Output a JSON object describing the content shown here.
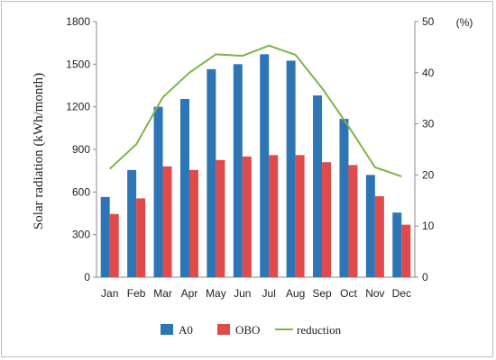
{
  "chart_data": {
    "type": "bar",
    "categories": [
      "Jan",
      "Feb",
      "Mar",
      "Apr",
      "May",
      "Jun",
      "Jul",
      "Aug",
      "Sep",
      "Oct",
      "Nov",
      "Dec"
    ],
    "series": [
      {
        "name": "A0",
        "type": "bar",
        "axis": "left",
        "color": "#2e75b6",
        "values": [
          565,
          755,
          1200,
          1255,
          1465,
          1500,
          1570,
          1525,
          1280,
          1115,
          720,
          455
        ]
      },
      {
        "name": "OBO",
        "type": "bar",
        "axis": "left",
        "color": "#e04a4a",
        "values": [
          445,
          555,
          780,
          755,
          825,
          850,
          860,
          860,
          810,
          790,
          570,
          370
        ]
      },
      {
        "name": "reduction",
        "type": "line",
        "axis": "right",
        "color": "#7bb543",
        "values": [
          21.2,
          26.0,
          35.2,
          40.0,
          43.6,
          43.3,
          45.3,
          43.5,
          37.0,
          29.5,
          21.5,
          19.7
        ]
      }
    ],
    "ylabel": "Solar radiation (kWh/month)",
    "y2label": "(%)",
    "ylim": [
      0,
      1800
    ],
    "yticks": [
      "0",
      "300",
      "600",
      "900",
      "1200",
      "1500",
      "1800"
    ],
    "y2lim": [
      0,
      50
    ],
    "y2ticks": [
      "0",
      "10",
      "20",
      "30",
      "40",
      "50"
    ],
    "grid": false,
    "legend": "bottom"
  }
}
